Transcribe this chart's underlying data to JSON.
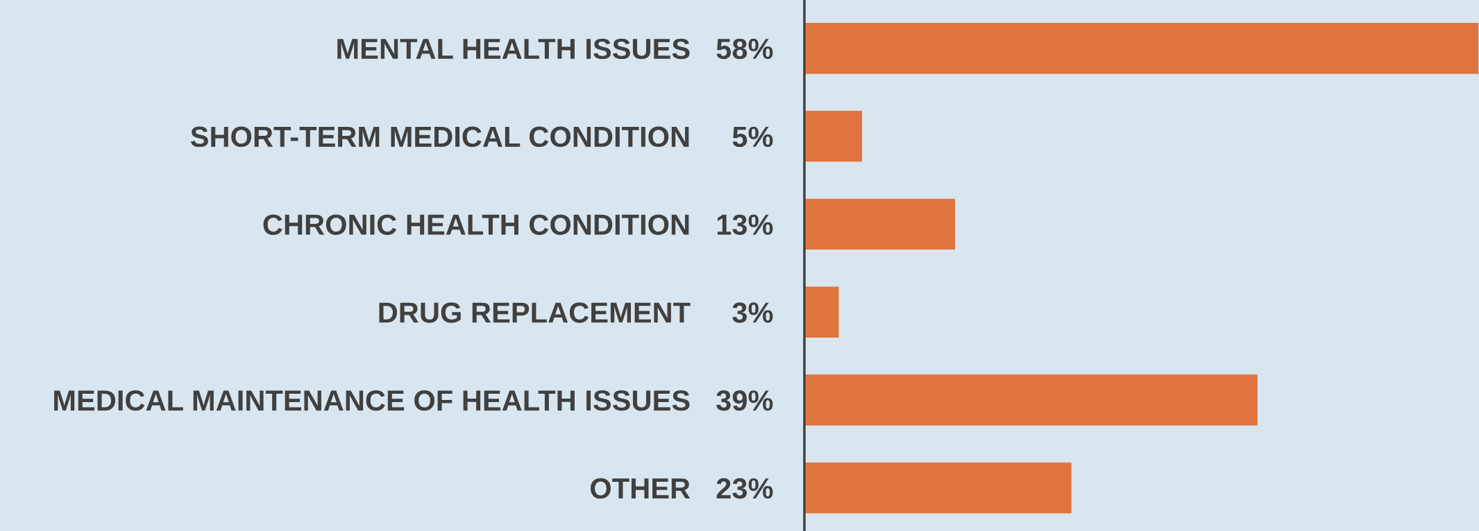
{
  "chart_data": {
    "type": "bar",
    "orientation": "horizontal",
    "categories": [
      "MENTAL HEALTH ISSUES",
      "SHORT-TERM MEDICAL CONDITION",
      "CHRONIC HEALTH CONDITION",
      "DRUG REPLACEMENT",
      "MEDICAL MAINTENANCE OF HEALTH ISSUES",
      "OTHER"
    ],
    "values": [
      58,
      5,
      13,
      3,
      39,
      23
    ],
    "value_labels": [
      "58%",
      "5%",
      "13%",
      "3%",
      "39%",
      "23%"
    ],
    "color": "#e0743e"
  }
}
